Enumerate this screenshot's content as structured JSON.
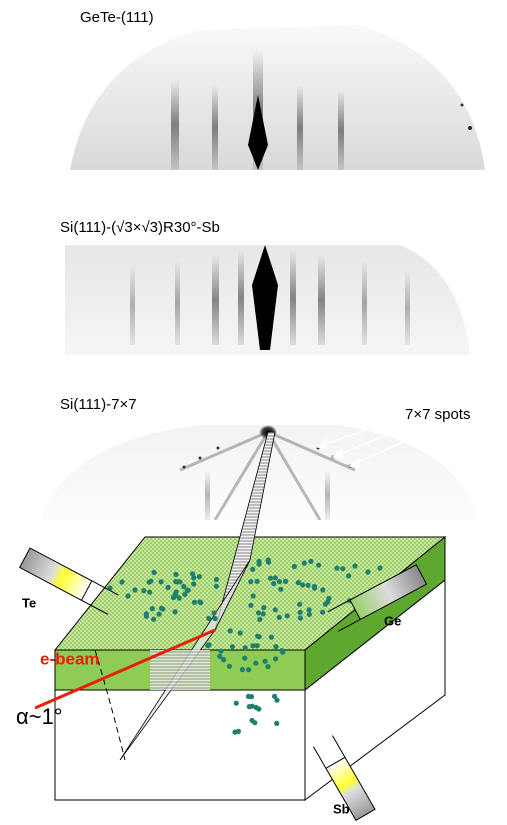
{
  "panels": [
    {
      "label": "GeTe-(111)"
    },
    {
      "label": "Si(111)-(√3×√3)R30°-Sb"
    },
    {
      "label": "Si(111)-7×7",
      "annotation": "7×7 spots"
    }
  ],
  "diagram": {
    "sources": [
      "Te",
      "Ge",
      "Sb"
    ],
    "beam": "e-beam",
    "angle": "α~1°"
  }
}
